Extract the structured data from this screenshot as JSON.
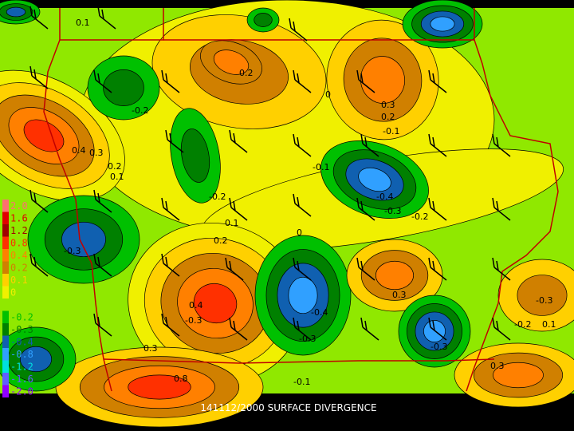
{
  "title": "141112/2000 SURFACE DIVERGENCE",
  "legend": [
    {
      "label": "2.0",
      "color": "#ff7070"
    },
    {
      "label": "1.6",
      "color": "#e00000"
    },
    {
      "label": "1.2",
      "color": "#a00000"
    },
    {
      "label": "0.8",
      "color": "#ff3000"
    },
    {
      "label": "0.4",
      "color": "#ff8000"
    },
    {
      "label": "0.2",
      "color": "#d08000"
    },
    {
      "label": "0.1",
      "color": "#ffd000"
    },
    {
      "label": "0",
      "color": "#f0f000"
    },
    {
      "label": "-0.1",
      "color": "#90e800"
    },
    {
      "label": "-0.2",
      "color": "#00c000"
    },
    {
      "label": "-0.3",
      "color": "#008000"
    },
    {
      "label": "-0.4",
      "color": "#1060b0"
    },
    {
      "label": "-0.8",
      "color": "#30a0ff"
    },
    {
      "label": "-1.2",
      "color": "#00e0e0"
    },
    {
      "label": "-1.6",
      "color": "#6060ff"
    },
    {
      "label": "-2.0",
      "color": "#9000ff"
    }
  ],
  "contour_labels": [
    "0.1",
    "-0.2",
    "0.2",
    "0",
    "0.3",
    "0.2",
    "-0.1",
    "0.4",
    "0.3",
    "0.2",
    "0.1",
    "-0.2",
    "-0.1",
    "-0.4",
    "-0.3",
    "-0.2",
    "-0.3",
    "0.2",
    "0.1",
    "0",
    "0.4",
    "-0.3",
    "-0.4",
    "-0.3",
    "0.3",
    "-0.3",
    "0.8",
    "0.3",
    "-0.1",
    "0.3",
    "-0.3",
    "0.1",
    "-0.2"
  ]
}
